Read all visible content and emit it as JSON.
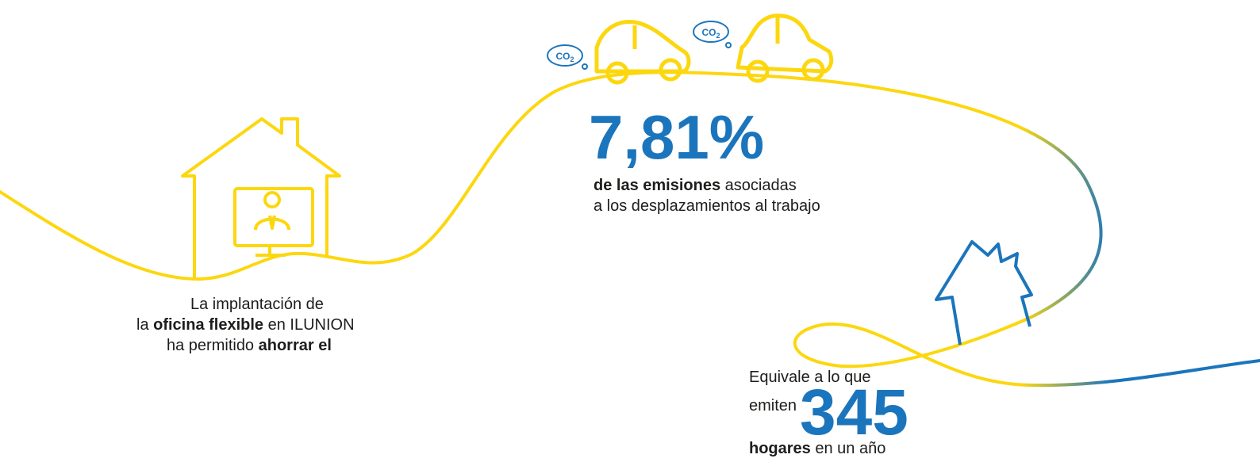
{
  "left_text": {
    "line1": "La implantación de",
    "line2": [
      "la ",
      "oficina flexible",
      " en ILUNION"
    ],
    "line3": [
      "ha permitido ",
      "ahorrar el"
    ]
  },
  "highlight": {
    "value": "7,81%",
    "line1": [
      "de las emisiones",
      " asociadas"
    ],
    "line2": "a los desplazamientos al trabajo"
  },
  "equivalence": {
    "line1": "Equivale a lo que",
    "verb": "emiten",
    "value": "345",
    "line3": [
      "hogares",
      " en un año"
    ]
  },
  "co2_label": {
    "main": "CO",
    "sub": "2"
  }
}
